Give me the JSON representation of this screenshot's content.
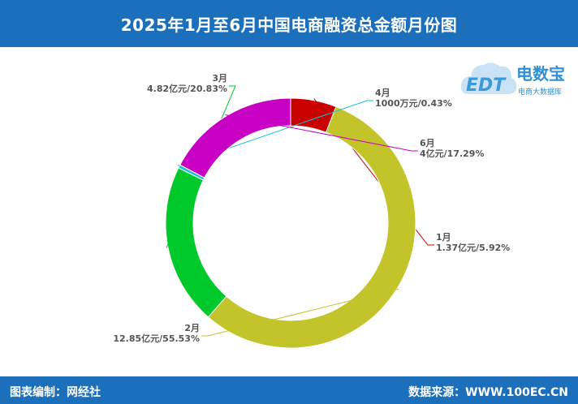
{
  "header": {
    "title": "2025年1月至6月中国电商融资总金额月份图"
  },
  "footer": {
    "left": "图表编制：网经社",
    "right": "数据来源：WWW.100EC.CN"
  },
  "logo": {
    "text": "电数宝",
    "sub": "电商大数据库",
    "mark": "EDT"
  },
  "chart_data": {
    "type": "pie",
    "donut": true,
    "start_angle_deg": 90,
    "direction": "clockwise",
    "order": [
      "1月",
      "2月",
      "3月",
      "4月",
      "6月"
    ],
    "slices": [
      {
        "name": "1月",
        "amount": "1.37亿元",
        "percent": 5.92,
        "label": "1.37亿元/5.92%",
        "color": "#c80000"
      },
      {
        "name": "2月",
        "amount": "12.85亿元",
        "percent": 55.53,
        "label": "12.85亿元/55.53%",
        "color": "#c2c42a"
      },
      {
        "name": "3月",
        "amount": "4.82亿元",
        "percent": 20.83,
        "label": "4.82亿元/20.83%",
        "color": "#00c92b"
      },
      {
        "name": "4月",
        "amount": "1000万元",
        "percent": 0.43,
        "label": "1000万元/0.43%",
        "color": "#19c1d1"
      },
      {
        "name": "6月",
        "amount": "4亿元",
        "percent": 17.29,
        "label": "4亿元/17.29%",
        "color": "#c800c4"
      }
    ]
  }
}
